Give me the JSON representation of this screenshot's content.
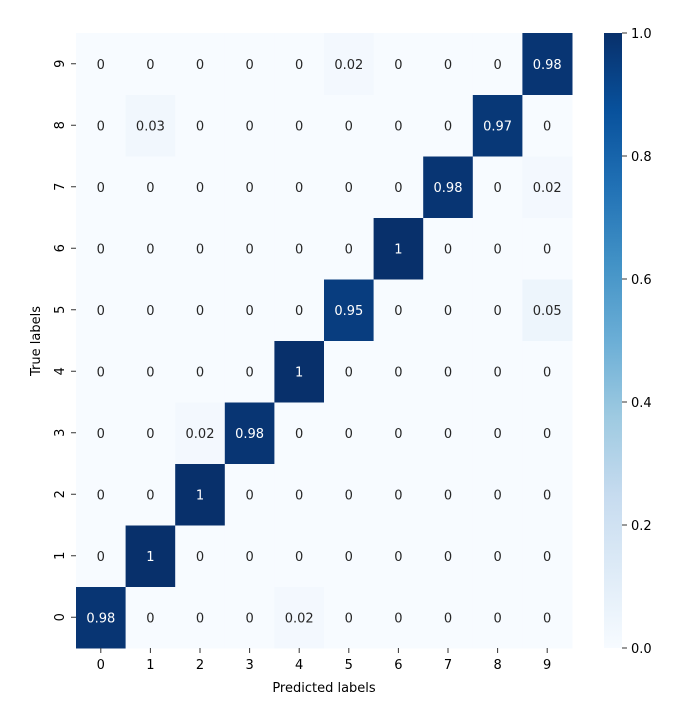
{
  "chart_data": {
    "type": "heatmap",
    "title": "",
    "xlabel": "Predicted labels",
    "ylabel": "True labels",
    "x_categories": [
      "0",
      "1",
      "2",
      "3",
      "4",
      "5",
      "6",
      "7",
      "8",
      "9"
    ],
    "y_categories": [
      "0",
      "1",
      "2",
      "3",
      "4",
      "5",
      "6",
      "7",
      "8",
      "9"
    ],
    "y_order": "bottom-to-top",
    "colormap": "Blues",
    "color_range": [
      0.0,
      1.0
    ],
    "colorbar_ticks": [
      "0.0",
      "0.2",
      "0.4",
      "0.6",
      "0.8",
      "1.0"
    ],
    "annotated": true,
    "matrix": [
      [
        0.98,
        0,
        0,
        0,
        0.02,
        0,
        0,
        0,
        0,
        0
      ],
      [
        0,
        1,
        0,
        0,
        0,
        0,
        0,
        0,
        0,
        0
      ],
      [
        0,
        0,
        1,
        0,
        0,
        0,
        0,
        0,
        0,
        0
      ],
      [
        0,
        0,
        0.02,
        0.98,
        0,
        0,
        0,
        0,
        0,
        0
      ],
      [
        0,
        0,
        0,
        0,
        1,
        0,
        0,
        0,
        0,
        0
      ],
      [
        0,
        0,
        0,
        0,
        0,
        0.95,
        0,
        0,
        0,
        0.05
      ],
      [
        0,
        0,
        0,
        0,
        0,
        0,
        1,
        0,
        0,
        0
      ],
      [
        0,
        0,
        0,
        0,
        0,
        0,
        0,
        0.98,
        0,
        0.02
      ],
      [
        0,
        0.03,
        0,
        0,
        0,
        0,
        0,
        0,
        0.97,
        0
      ],
      [
        0,
        0,
        0,
        0,
        0,
        0.02,
        0,
        0,
        0,
        0.98
      ]
    ]
  }
}
